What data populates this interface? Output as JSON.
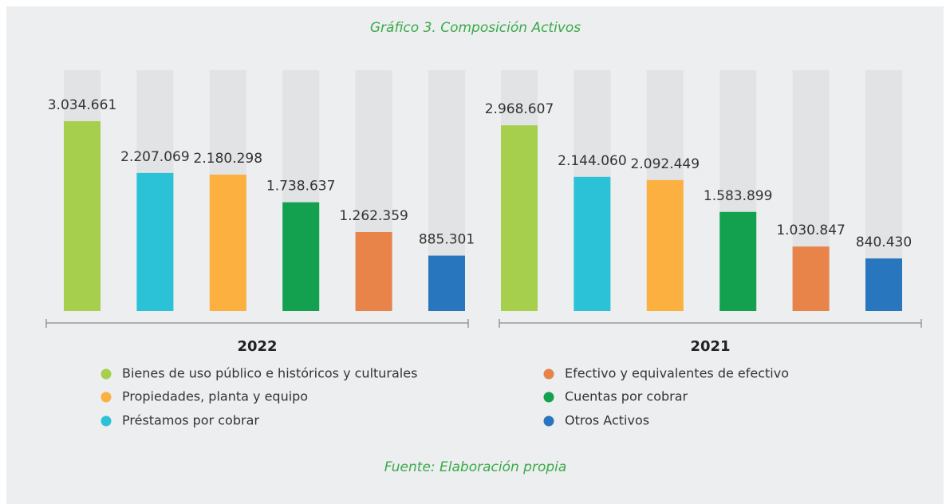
{
  "chart_data": {
    "type": "bar",
    "title": "Gráfico 3. Composición Activos",
    "source": "Fuente: Elaboración propia",
    "categories": [
      "2022",
      "2021"
    ],
    "ylim": [
      0,
      3850000
    ],
    "series": [
      {
        "name": "Bienes de uso público e históricos y culturales",
        "color": "#a5cf4c",
        "values": [
          3034661,
          2968607
        ],
        "value_labels": [
          "3.034.661",
          "2.968.607"
        ]
      },
      {
        "name": "Préstamos por cobrar",
        "color": "#2bc1d6",
        "values": [
          2207069,
          2144060
        ],
        "value_labels": [
          "2.207.069",
          "2.144.060"
        ]
      },
      {
        "name": "Propiedades, planta y equipo",
        "color": "#fbb040",
        "values": [
          2180298,
          2092449
        ],
        "value_labels": [
          "2.180.298",
          "2.092.449"
        ]
      },
      {
        "name": "Cuentas por cobrar",
        "color": "#13a150",
        "values": [
          1738637,
          1583899
        ],
        "value_labels": [
          "1.738.637",
          "1.583.899"
        ]
      },
      {
        "name": "Efectivo y equivalentes de efectivo",
        "color": "#e8834a",
        "values": [
          1262359,
          1030847
        ],
        "value_labels": [
          "1.262.359",
          "1.030.847"
        ]
      },
      {
        "name": "Otros Activos",
        "color": "#2876bd",
        "values": [
          885301,
          840430
        ],
        "value_labels": [
          "885.301",
          "840.430"
        ]
      }
    ]
  }
}
